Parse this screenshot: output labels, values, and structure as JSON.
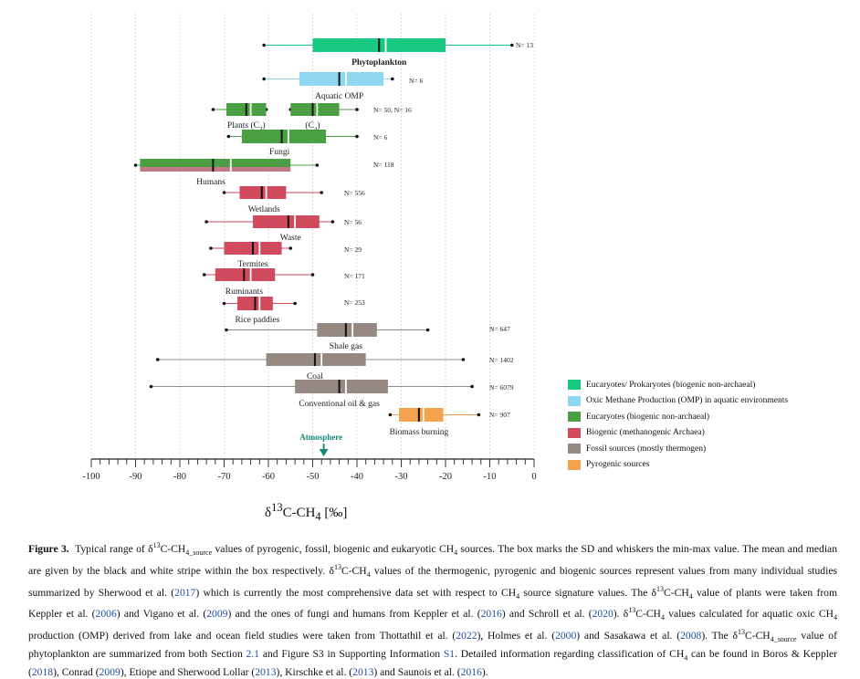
{
  "chart_data": {
    "type": "boxplot",
    "orientation": "horizontal",
    "xlabel": "δ13C-CH4 [‰]",
    "xlim": [
      -100,
      0
    ],
    "xticks": [
      -100,
      -90,
      -80,
      -70,
      -60,
      -50,
      -40,
      -30,
      -20,
      -10,
      0
    ],
    "annotation": {
      "label": "Atmosphere",
      "value": -47.5
    },
    "rows": [
      {
        "id": "phytoplankton",
        "label": "Phytoplankton",
        "n": "N= 13",
        "cat": "euk_pro",
        "min": -61,
        "q1": -50,
        "q3": -20,
        "max": -5,
        "mean": -35,
        "median": -33.5,
        "bold": true
      },
      {
        "id": "aquatic-omp",
        "label": "Aquatic OMP",
        "n": "N= 6",
        "cat": "omp",
        "min": -61,
        "q1": -53,
        "q3": -34,
        "max": -32,
        "mean": -44,
        "median": -42.5
      },
      {
        "id": "plants-c3",
        "label": "Plants (C3)",
        "n": "N= 50, N= 16",
        "cat": "euk",
        "min": -72.5,
        "q1": -69.5,
        "q3": -60.5,
        "max": -60.5,
        "mean": -65,
        "median": -64
      },
      {
        "id": "plants-c4",
        "label": "(C4)",
        "n": "",
        "cat": "euk",
        "min": -55,
        "q1": -55,
        "q3": -44,
        "max": -40,
        "mean": -50,
        "median": -49
      },
      {
        "id": "fungi",
        "label": "Fungi",
        "n": "N= 6",
        "cat": "euk",
        "min": -69,
        "q1": -66,
        "q3": -47,
        "max": -40,
        "mean": -57,
        "median": -55.5
      },
      {
        "id": "humans",
        "label": "Humans",
        "n": "N= 118",
        "cat": "euk",
        "min": -90,
        "q1": -89,
        "q3": -55,
        "max": -49,
        "mean": -72.5,
        "median": -68.5
      },
      {
        "id": "wetlands",
        "label": "Wetlands",
        "n": "N= 556",
        "cat": "biogenic",
        "min": -70,
        "q1": -66.5,
        "q3": -56,
        "max": -48,
        "mean": -61.5,
        "median": -60.5
      },
      {
        "id": "waste",
        "label": "Waste",
        "n": "N= 56",
        "cat": "biogenic",
        "min": -74,
        "q1": -63.5,
        "q3": -48.5,
        "max": -45.5,
        "mean": -55.5,
        "median": -54
      },
      {
        "id": "termites",
        "label": "Termites",
        "n": "N= 29",
        "cat": "biogenic",
        "min": -73,
        "q1": -70,
        "q3": -57,
        "max": -55,
        "mean": -63.5,
        "median": -62
      },
      {
        "id": "ruminants",
        "label": "Ruminants",
        "n": "N= 171",
        "cat": "biogenic",
        "min": -74.5,
        "q1": -72,
        "q3": -58.5,
        "max": -50,
        "mean": -65.5,
        "median": -64
      },
      {
        "id": "rice-paddies",
        "label": "Rice paddies",
        "n": "N= 253",
        "cat": "biogenic",
        "min": -70,
        "q1": -67,
        "q3": -59,
        "max": -54,
        "mean": -63,
        "median": -62
      },
      {
        "id": "shale-gas",
        "label": "Shale gas",
        "n": "N= 647",
        "cat": "fossil",
        "min": -69.5,
        "q1": -49,
        "q3": -35.5,
        "max": -24,
        "mean": -42.5,
        "median": -41
      },
      {
        "id": "coal",
        "label": "Coal",
        "n": "N= 1402",
        "cat": "fossil",
        "min": -85,
        "q1": -60.5,
        "q3": -38,
        "max": -16,
        "mean": -49.5,
        "median": -48
      },
      {
        "id": "conventional-oil-gas",
        "label": "Conventional oil & gas",
        "n": "N= 6079",
        "cat": "fossil",
        "min": -86.5,
        "q1": -54,
        "q3": -33,
        "max": -14,
        "mean": -44,
        "median": -42.5
      },
      {
        "id": "biomass-burning",
        "label": "Biomass burning",
        "n": "N= 907",
        "cat": "pyro",
        "min": -32.5,
        "q1": -30.5,
        "q3": -20.5,
        "max": -12.5,
        "mean": -26,
        "median": -25
      }
    ]
  },
  "legend": [
    {
      "key": "euk_pro",
      "label": "Eucaryotes/ Prokaryotes (biogenic non-archaeal)",
      "color": "#19c983"
    },
    {
      "key": "omp",
      "label": "Oxic Methane Production (OMP) in aquatic environments",
      "color": "#8fd6f2"
    },
    {
      "key": "euk",
      "label": "Eucaryotes (biogenic non-archaeal)",
      "color": "#4a9f43"
    },
    {
      "key": "biogenic",
      "label": "Biogenic (methanogenic Archaea)",
      "color": "#d24a5e"
    },
    {
      "key": "fossil",
      "label": "Fossil sources (mostly thermogen)",
      "color": "#968984"
    },
    {
      "key": "pyro",
      "label": "Pyrogenic sources",
      "color": "#f3a24e"
    }
  ],
  "colors": {
    "euk_pro": "#19c983",
    "omp": "#8fd6f2",
    "euk": "#4a9f43",
    "biogenic": "#d24a5e",
    "fossil": "#968984",
    "pyro": "#f3a24e",
    "humans_bottom": "#c47a84",
    "atmosphere": "#12887a"
  },
  "caption": {
    "label": "Figure 3.",
    "lines": [
      "Typical range of δ13C-CH4_source values of pyrogenic, fossil, biogenic and eukaryotic CH4 sources. The box marks the SD and whiskers the min-max value.",
      "The mean and median are given by the black and white stripe within the box respectively. δ13C-CH4 values of the thermogenic, pyrogenic and biogenic sources",
      "represent values from many individual studies summarized by Sherwood et al. (2017) which is currently the most comprehensive data set with respect to CH4 source",
      "signature values. The δ13C-CH4 value of plants were taken from Keppler et al. (2006) and Vigano et al. (2009) and the ones of fungi and humans from Keppler",
      "et al. (2016) and Schroll et al. (2020). δ13C-CH4 values calculated for aquatic oxic CH4 production (OMP) derived from lake and ocean field studies were taken from",
      "Thottathil et al. (2022), Holmes et al. (2000) and Sasakawa et al. (2008). The δ13C-CH4_source value of phytoplankton are summarized from both Section 2.1 and Figure",
      "S3 in Supporting Information S1. Detailed information regarding classification of CH4 can be found in Boros & Keppler (2018), Conrad (2009), Etiope and Sherwood",
      "Lollar (2013), Kirschke et al. (2013) and Saunois et al. (2016)."
    ]
  }
}
